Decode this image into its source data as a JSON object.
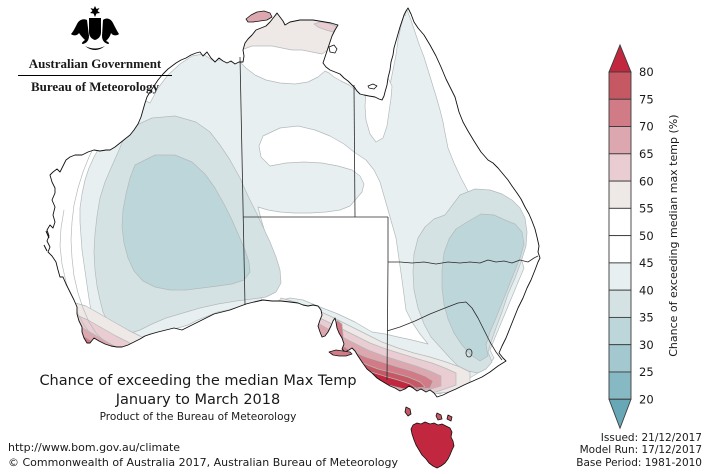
{
  "header": {
    "government": "Australian Government",
    "agency": "Bureau of Meteorology",
    "crest_icon": "australian-coat-of-arms"
  },
  "title": {
    "line1": "Chance of exceeding the median Max Temp",
    "line2": "January to March 2018",
    "line3": "Product of the Bureau of Meteorology"
  },
  "footer": {
    "url": "http://www.bom.gov.au/climate",
    "copyright": "© Commonwealth of Australia 2017, Australian Bureau of Meteorology"
  },
  "meta": {
    "issued": "Issued: 21/12/2017",
    "model_run": "Model Run: 17/12/2017",
    "base_period": "Base Period: 1981-2010"
  },
  "scale": {
    "label": "Chance of exceeding median max temp (%)",
    "tick_max": 80,
    "tick_min": 20,
    "tick_step": 5,
    "bands": [
      {
        "range": ">80",
        "color": "#c22740"
      },
      {
        "range": "75-80",
        "color": "#c65864"
      },
      {
        "range": "70-75",
        "color": "#d17b87"
      },
      {
        "range": "65-70",
        "color": "#dda7af"
      },
      {
        "range": "60-65",
        "color": "#e9cdd2"
      },
      {
        "range": "55-60",
        "color": "#eee8e7"
      },
      {
        "range": "50-55",
        "color": "#ffffff"
      },
      {
        "range": "45-50",
        "color": "#ffffff"
      },
      {
        "range": "40-45",
        "color": "#e7eff0"
      },
      {
        "range": "35-40",
        "color": "#d5e2e4"
      },
      {
        "range": "30-35",
        "color": "#bdd6da"
      },
      {
        "range": "25-30",
        "color": "#a3c8d0"
      },
      {
        "range": "20-25",
        "color": "#87b9c4"
      },
      {
        "range": "<20",
        "color": "#68a8b6"
      }
    ]
  },
  "map_summary": {
    "type": "filled-contour map of Australia",
    "readings": [
      {
        "area": "Tasmania",
        "level": ">80"
      },
      {
        "area": "Victorian south coast",
        "level": "75-80 to >80"
      },
      {
        "area": "Southwest WA tip",
        "level": "60-75"
      },
      {
        "area": "Adelaide / Kangaroo Island",
        "level": "65-75"
      },
      {
        "area": "Top End NT coast / Tiwi Islands",
        "level": "55-70"
      },
      {
        "area": "Interior WA",
        "level": "30-35"
      },
      {
        "area": "Inland NSW / SE QLD",
        "level": "30-40"
      },
      {
        "area": "Central Australia and most of interior",
        "level": "40-45"
      },
      {
        "area": "South Australia centre / far-west NSW",
        "level": "45-55"
      }
    ]
  }
}
